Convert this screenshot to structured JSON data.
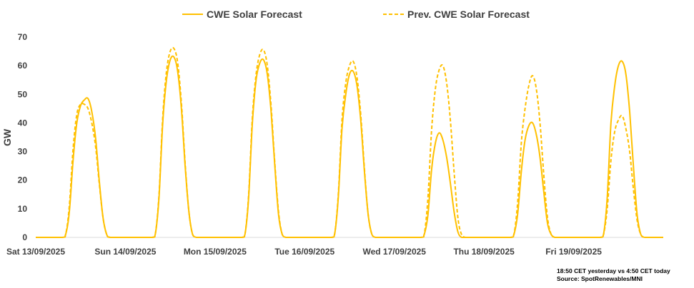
{
  "chart_data": {
    "type": "line",
    "ylabel": "GW",
    "ylim": [
      0,
      70
    ],
    "yticks": [
      0,
      10,
      20,
      30,
      40,
      50,
      60,
      70
    ],
    "grid": false,
    "legend_position": "top",
    "x_tick_labels": [
      "Sat 13/09/2025",
      "Sun 14/09/2025",
      "Mon 15/09/2025",
      "Tue 16/09/2025",
      "Wed 17/09/2025",
      "Thu 18/09/2025",
      "Fri 19/09/2025"
    ],
    "x_unit": "hours",
    "x_range": [
      0,
      168
    ],
    "series": [
      {
        "name": "CWE Solar Forecast",
        "style": "solid",
        "color": "#FFC000",
        "x": [
          0,
          7,
          8,
          9,
          10,
          11,
          12,
          13,
          14,
          15,
          16,
          17,
          18,
          19,
          20,
          24,
          31,
          32,
          33,
          34,
          35,
          36,
          37,
          38,
          39,
          40,
          41,
          42,
          43,
          44,
          48,
          55,
          56,
          57,
          58,
          59,
          60,
          61,
          62,
          63,
          64,
          65,
          66,
          67,
          68,
          72,
          79,
          80,
          81,
          82,
          83,
          84,
          85,
          86,
          87,
          88,
          89,
          90,
          91,
          92,
          96,
          103,
          104,
          105,
          106,
          107,
          108,
          109,
          110,
          111,
          112,
          113,
          114,
          115,
          116,
          120,
          127,
          128,
          129,
          130,
          131,
          132,
          133,
          134,
          135,
          136,
          137,
          138,
          139,
          140,
          144,
          151,
          152,
          153,
          154,
          155,
          156,
          157,
          158,
          159,
          160,
          161,
          162,
          163,
          164,
          168
        ],
        "values": [
          0,
          0,
          1,
          9,
          27,
          40,
          46,
          48,
          48.5,
          44,
          35,
          20,
          7,
          1,
          0,
          0,
          0,
          1,
          14,
          40,
          55,
          62,
          63,
          58,
          45,
          25,
          9,
          1,
          0,
          0,
          0,
          0,
          1,
          14,
          40,
          55,
          61,
          62,
          57,
          44,
          25,
          8,
          1,
          0,
          0,
          0,
          0,
          1,
          14,
          38,
          50,
          57,
          58,
          53,
          41,
          23,
          8,
          1,
          0,
          0,
          0,
          0,
          1,
          8,
          24,
          33,
          36.5,
          34,
          28,
          19,
          9,
          2,
          0,
          0,
          0,
          0,
          0,
          1,
          8,
          23,
          34,
          39,
          40,
          36,
          28,
          16,
          5,
          1,
          0,
          0,
          0,
          0,
          1,
          14,
          40,
          53,
          60,
          61.5,
          57,
          44,
          25,
          8,
          1,
          0,
          0,
          0
        ]
      },
      {
        "name": "Prev. CWE Solar Forecast",
        "style": "dashed",
        "color": "#FFC000",
        "x": [
          0,
          7,
          8,
          9,
          10,
          11,
          12,
          13,
          14,
          15,
          16,
          17,
          18,
          19,
          20,
          24,
          31,
          32,
          33,
          34,
          35,
          36,
          37,
          38,
          39,
          40,
          41,
          42,
          43,
          44,
          48,
          55,
          56,
          57,
          58,
          59,
          60,
          61,
          62,
          63,
          64,
          65,
          66,
          67,
          68,
          72,
          79,
          80,
          81,
          82,
          83,
          84,
          85,
          86,
          87,
          88,
          89,
          90,
          91,
          92,
          96,
          103,
          104,
          105,
          106,
          107,
          108,
          109,
          110,
          111,
          112,
          113,
          114,
          115,
          116,
          120,
          127,
          128,
          129,
          130,
          131,
          132,
          133,
          134,
          135,
          136,
          137,
          138,
          139,
          140,
          144,
          151,
          152,
          153,
          154,
          155,
          156,
          157,
          158,
          159,
          160,
          161,
          162,
          163,
          164,
          168
        ],
        "values": [
          0,
          0,
          1,
          11,
          31,
          43,
          46.5,
          46.5,
          45,
          40,
          32,
          19,
          7,
          1,
          0,
          0,
          0,
          1,
          15,
          42,
          58,
          65,
          66,
          61,
          47,
          26,
          9,
          1,
          0,
          0,
          0,
          0,
          1,
          15,
          42,
          57,
          64,
          65.5,
          60,
          46,
          26,
          9,
          1,
          0,
          0,
          0,
          0,
          1,
          15,
          41,
          54,
          60,
          61.5,
          56,
          43,
          24,
          8,
          1,
          0,
          0,
          0,
          0,
          1,
          14,
          38,
          52,
          58.5,
          60,
          54,
          41,
          23,
          7,
          1,
          0,
          0,
          0,
          0,
          1,
          12,
          33,
          45,
          53,
          56.5,
          52,
          40,
          22,
          7,
          1,
          0,
          0,
          0,
          0,
          1,
          10,
          27,
          37,
          41,
          42.5,
          38,
          30,
          17,
          6,
          1,
          0,
          0,
          0
        ]
      }
    ]
  },
  "notes": {
    "line1": "18:50 CET yesterday vs  4:50 CET today",
    "line2": "Source: SpotRenewables/MNI"
  }
}
